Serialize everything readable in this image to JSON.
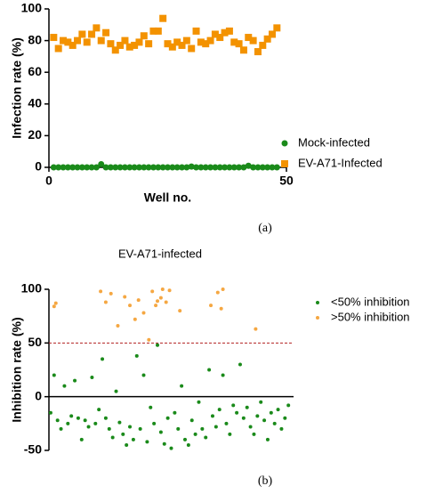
{
  "chart_data": [
    {
      "type": "scatter",
      "caption": "(a)",
      "xlabel": "Well no.",
      "ylabel": "Infection rate (%)",
      "xlim": [
        0,
        50
      ],
      "xticks": [
        0,
        50
      ],
      "ylim": [
        0,
        100
      ],
      "yticks": [
        0,
        20,
        40,
        60,
        80,
        100
      ],
      "series": [
        {
          "name": "Mock-infected",
          "color": "#1a8a1a",
          "marker": "circle",
          "x": [
            1,
            2,
            3,
            4,
            5,
            6,
            7,
            8,
            9,
            10,
            11,
            12,
            13,
            14,
            15,
            16,
            17,
            18,
            19,
            20,
            21,
            22,
            23,
            24,
            25,
            26,
            27,
            28,
            29,
            30,
            31,
            32,
            33,
            34,
            35,
            36,
            37,
            38,
            39,
            40,
            41,
            42,
            43,
            44,
            45,
            46,
            47,
            48
          ],
          "values": [
            0,
            0,
            0,
            0,
            0,
            0,
            0,
            0,
            0,
            0,
            2,
            0,
            0,
            0,
            0,
            0,
            0,
            0,
            0,
            0,
            0,
            0,
            0,
            0,
            0,
            0,
            0,
            0,
            0,
            0.5,
            0,
            0,
            0,
            0,
            0,
            0,
            0,
            0,
            0,
            0,
            0,
            1,
            0,
            0,
            0,
            0,
            0,
            0
          ]
        },
        {
          "name": "EV-A71-Infected",
          "color": "#f39200",
          "marker": "square",
          "x": [
            1,
            2,
            3,
            4,
            5,
            6,
            7,
            8,
            9,
            10,
            11,
            12,
            13,
            14,
            15,
            16,
            17,
            18,
            19,
            20,
            21,
            22,
            23,
            24,
            25,
            26,
            27,
            28,
            29,
            30,
            31,
            32,
            33,
            34,
            35,
            36,
            37,
            38,
            39,
            40,
            41,
            42,
            43,
            44,
            45,
            46,
            47,
            48
          ],
          "values": [
            82,
            75,
            80,
            79,
            77,
            80,
            84,
            79,
            84,
            88,
            80,
            85,
            78,
            74,
            77,
            80,
            76,
            77,
            79,
            83,
            78,
            86,
            86,
            94,
            78,
            76,
            79,
            77,
            80,
            75,
            86,
            79,
            78,
            80,
            84,
            82,
            85,
            86,
            79,
            78,
            74,
            82,
            80,
            73,
            77,
            81,
            84,
            88
          ]
        }
      ]
    },
    {
      "type": "scatter",
      "title": "EV-A71-infected",
      "caption": "(b)",
      "ylabel": "Inhibition rate (%)",
      "xlim": [
        0,
        142
      ],
      "ylim": [
        -50,
        100
      ],
      "yticks": [
        -50,
        0,
        50,
        100
      ],
      "threshold": 50,
      "threshold_color": "#b22222",
      "series": [
        {
          "name": "<50% inhibition",
          "color": "#1a8a1a",
          "marker": "dot",
          "x": [
            1,
            3,
            5,
            7,
            9,
            11,
            13,
            15,
            17,
            19,
            21,
            23,
            25,
            27,
            29,
            31,
            33,
            35,
            37,
            39,
            41,
            43,
            45,
            47,
            49,
            51,
            53,
            55,
            57,
            59,
            61,
            63,
            65,
            67,
            69,
            71,
            73,
            75,
            77,
            79,
            81,
            83,
            85,
            87,
            89,
            91,
            93,
            95,
            97,
            99,
            101,
            103,
            105,
            107,
            109,
            111,
            113,
            115,
            117,
            119,
            121,
            123,
            125,
            127,
            129,
            131,
            133,
            135,
            137,
            139
          ],
          "values": [
            -15,
            20,
            -22,
            -30,
            10,
            -25,
            -18,
            15,
            -20,
            -40,
            -22,
            -28,
            18,
            -25,
            -12,
            35,
            -20,
            -30,
            -38,
            5,
            -24,
            -35,
            -45,
            -28,
            -40,
            38,
            -30,
            20,
            -42,
            -10,
            -25,
            48,
            -33,
            -44,
            -20,
            -48,
            -15,
            -30,
            10,
            -40,
            -45,
            -22,
            -35,
            -5,
            -30,
            -38,
            25,
            -18,
            -28,
            -12,
            20,
            -25,
            -35,
            -8,
            -15,
            30,
            -20,
            -10,
            -28,
            -35,
            -18,
            -5,
            -22,
            -40,
            -15,
            -25,
            -12,
            -30,
            -20,
            -8
          ]
        },
        {
          "name": ">50% inhibition",
          "color": "#f5a742",
          "marker": "dot",
          "x": [
            3,
            4,
            30,
            33,
            36,
            40,
            44,
            47,
            50,
            52,
            55,
            58,
            60,
            62,
            63,
            65,
            66,
            68,
            70,
            76,
            94,
            98,
            100,
            101,
            120
          ],
          "values": [
            84,
            87,
            98,
            88,
            96,
            66,
            93,
            85,
            72,
            90,
            78,
            53,
            98,
            85,
            89,
            92,
            100,
            88,
            99,
            80,
            85,
            97,
            82,
            100,
            63
          ]
        }
      ]
    }
  ]
}
